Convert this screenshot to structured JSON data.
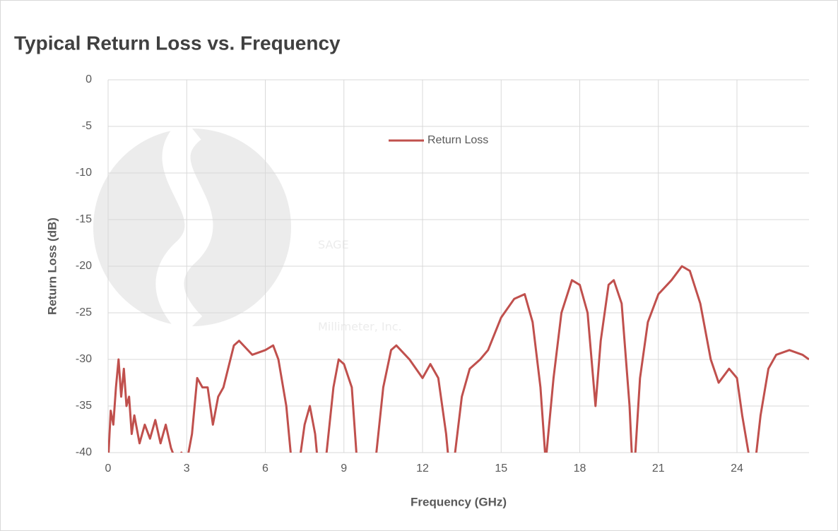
{
  "chart_data": {
    "type": "line",
    "title": "Typical Return Loss vs. Frequency",
    "x_label": "Frequency (GHz)",
    "y_label": "Return Loss (dB)",
    "watermark": [
      "SAGE",
      "Millimeter, Inc."
    ],
    "xlim": [
      0,
      26.75
    ],
    "xticks": [
      0,
      3,
      6,
      9,
      12,
      15,
      18,
      21,
      24
    ],
    "ylim": [
      -40,
      0
    ],
    "yticks": [
      0,
      -5,
      -10,
      -15,
      -20,
      -25,
      -30,
      -35,
      -40
    ],
    "grid": true,
    "legend": "top",
    "x": [
      0,
      0.1,
      0.2,
      0.3,
      0.4,
      0.5,
      0.6,
      0.7,
      0.8,
      0.9,
      1.0,
      1.2,
      1.4,
      1.6,
      1.8,
      2.0,
      2.2,
      2.4,
      2.6,
      2.8,
      3.0,
      3.2,
      3.4,
      3.6,
      3.8,
      4.0,
      4.2,
      4.4,
      4.8,
      5.0,
      5.5,
      6.0,
      6.3,
      6.5,
      6.8,
      7.0,
      7.3,
      7.5,
      7.7,
      7.9,
      8.0,
      8.3,
      8.6,
      8.8,
      9.0,
      9.3,
      9.5,
      10.2,
      10.5,
      10.8,
      11.0,
      11.5,
      12.0,
      12.3,
      12.6,
      12.9,
      13.0,
      13.2,
      13.5,
      13.8,
      14.2,
      14.5,
      15.0,
      15.5,
      15.9,
      16.2,
      16.5,
      16.7,
      17.0,
      17.3,
      17.7,
      18.0,
      18.3,
      18.6,
      18.8,
      19.1,
      19.3,
      19.6,
      19.9,
      20.0,
      20.1,
      20.3,
      20.6,
      21.0,
      21.5,
      21.9,
      22.2,
      22.6,
      23.0,
      23.3,
      23.7,
      24.0,
      24.2,
      24.5,
      24.7,
      24.9,
      25.2,
      25.5,
      26.0,
      26.5,
      26.75
    ],
    "series": [
      {
        "name": "Return Loss",
        "color": "#c0504d",
        "values": [
          -41,
          -35.5,
          -37,
          -33,
          -30,
          -34,
          -31,
          -35,
          -34,
          -38,
          -36,
          -39,
          -37,
          -38.5,
          -36.5,
          -39,
          -37,
          -39.5,
          -41,
          -40,
          -41,
          -38,
          -32,
          -33,
          -33,
          -37,
          -34,
          -33,
          -28.5,
          -28,
          -29.5,
          -29,
          -28.5,
          -30,
          -35,
          -41,
          -41,
          -37,
          -35,
          -38,
          -41,
          -41,
          -33,
          -30,
          -30.5,
          -33,
          -41,
          -41,
          -33,
          -29,
          -28.5,
          -30,
          -32,
          -30.5,
          -32,
          -38,
          -41,
          -41,
          -34,
          -31,
          -30,
          -29,
          -25.5,
          -23.5,
          -23,
          -26,
          -33,
          -41,
          -32,
          -25,
          -21.5,
          -22,
          -25,
          -35,
          -28,
          -22,
          -21.5,
          -24,
          -35,
          -41,
          -41,
          -32,
          -26,
          -23,
          -21.5,
          -20,
          -20.5,
          -24,
          -30,
          -32.5,
          -31,
          -32,
          -36,
          -41,
          -41,
          -36,
          -31,
          -29.5,
          -29,
          -29.5,
          -30
        ]
      }
    ]
  }
}
